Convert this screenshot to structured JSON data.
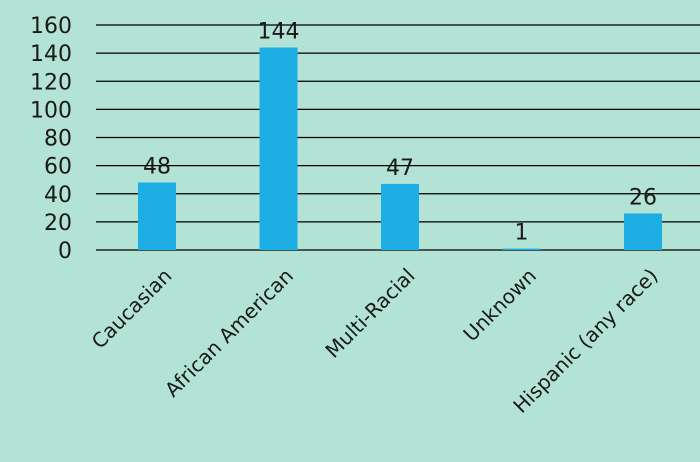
{
  "chart_data": {
    "type": "bar",
    "categories": [
      "Caucasian",
      "African American",
      "Multi-Racial",
      "Unknown",
      "Hispanic (any race)"
    ],
    "values": [
      48,
      144,
      47,
      1,
      26
    ],
    "data_labels": [
      "48",
      "144",
      "47",
      "1",
      "26"
    ],
    "title": "",
    "xlabel": "",
    "ylabel": "",
    "ylim": [
      0,
      160
    ],
    "yticks": [
      0,
      20,
      40,
      60,
      80,
      100,
      120,
      140,
      160
    ],
    "ytick_labels": [
      "0",
      "20",
      "40",
      "60",
      "80",
      "100",
      "120",
      "140",
      "160"
    ],
    "grid": true,
    "legend": "none"
  },
  "colors": {
    "background": "#b3e3d5",
    "bar": "#1daee6",
    "gridline": "#000000",
    "text": "#1a1a1a"
  }
}
